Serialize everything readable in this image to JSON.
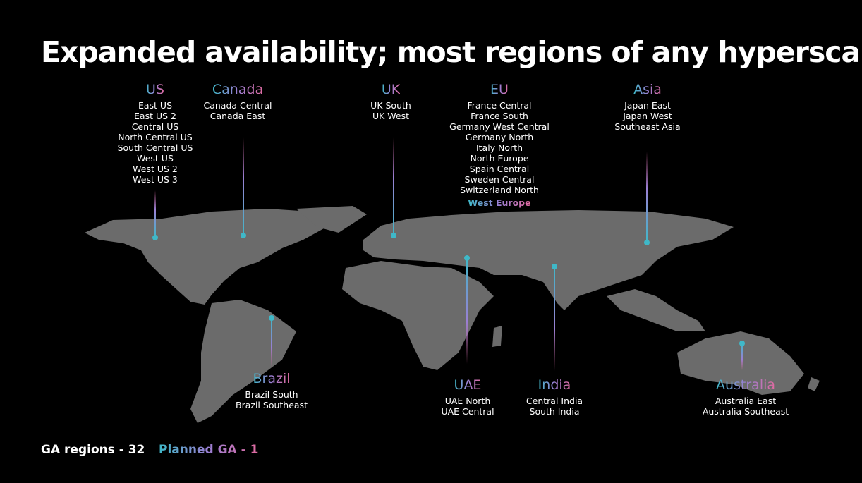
{
  "title": "Expanded availability; most regions of any hyperscaler",
  "colors": {
    "background": "#000000",
    "land": "#6b6b6b",
    "pin": "#3fb8c8",
    "gradient": [
      "#3fb8c8",
      "#9b7fd4",
      "#e06aa0"
    ]
  },
  "groups": [
    {
      "name": "US",
      "regions": [
        "East US",
        "East US 2",
        "Central US",
        "North Central US",
        "South Central US",
        "West US",
        "West US 2",
        "West US 3"
      ]
    },
    {
      "name": "Canada",
      "regions": [
        "Canada Central",
        "Canada East"
      ]
    },
    {
      "name": "UK",
      "regions": [
        "UK South",
        "UK West"
      ]
    },
    {
      "name": "EU",
      "regions": [
        "France Central",
        "France South",
        "Germany West Central",
        "Germany North",
        "Italy North",
        "North Europe",
        "Spain Central",
        "Sweden Central",
        "Switzerland North"
      ],
      "planned": "West Europe"
    },
    {
      "name": "Asia",
      "regions": [
        "Japan East",
        "Japan West",
        "Southeast Asia"
      ]
    },
    {
      "name": "Brazil",
      "regions": [
        "Brazil South",
        "Brazil Southeast"
      ]
    },
    {
      "name": "UAE",
      "regions": [
        "UAE North",
        "UAE Central"
      ]
    },
    {
      "name": "India",
      "regions": [
        "Central India",
        "South India"
      ]
    },
    {
      "name": "Australia",
      "regions": [
        "Australia East",
        "Australia Southeast"
      ]
    }
  ],
  "footer": {
    "ga": "GA regions - 32",
    "planned": "Planned GA - 1"
  }
}
